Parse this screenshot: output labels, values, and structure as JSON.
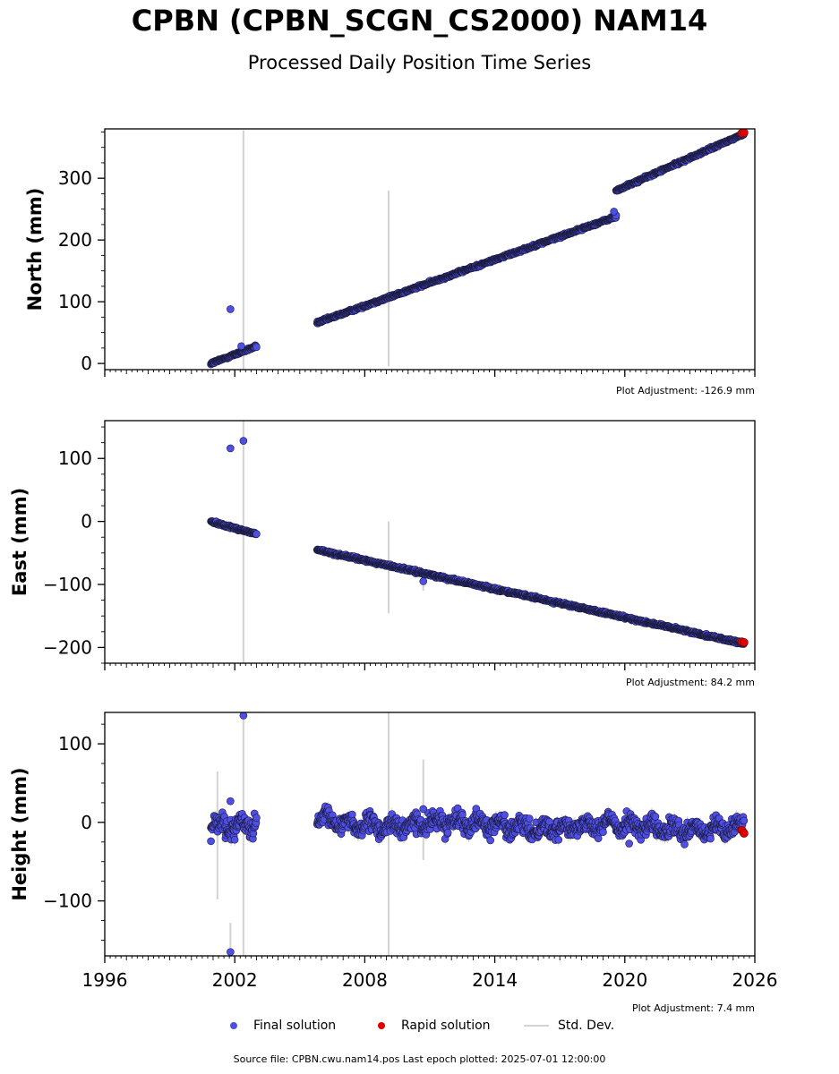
{
  "title": "CPBN (CPBN_SCGN_CS2000) NAM14",
  "subtitle": "Processed Daily Position Time Series",
  "footer": "Source file: CPBN.cwu.nam14.pos  Last epoch plotted: 2025-07-01 12:00:00",
  "legend": {
    "final": "Final solution",
    "rapid": "Rapid solution",
    "std": "Std. Dev."
  },
  "colors": {
    "final": "#4f4fe6",
    "final_edge": "#1a1a3a",
    "rapid": "#e00000",
    "std": "#d3d3d3"
  },
  "chart_data": [
    {
      "type": "scatter",
      "ylabel": "North (mm)",
      "xlim": [
        1996,
        2026
      ],
      "ylim": [
        -10,
        380
      ],
      "yticks": [
        0,
        100,
        200,
        300
      ],
      "ytick_labels": [
        "0",
        "100",
        "200",
        "300"
      ],
      "show_xtick_labels": false,
      "adjustment": "Plot Adjustment: -126.9 mm",
      "segments": [
        {
          "x0": 2000.9,
          "y0": 0,
          "x1": 2003.0,
          "y1": 28,
          "noise": 1.5
        },
        {
          "x0": 2005.8,
          "y0": 66,
          "x1": 2019.6,
          "y1": 238,
          "noise": 1.5
        },
        {
          "x0": 2019.6,
          "y0": 280,
          "x1": 2025.5,
          "y1": 372,
          "noise": 1.5
        }
      ],
      "outliers": [
        [
          2001.8,
          88
        ],
        [
          2002.3,
          28
        ],
        [
          2019.5,
          246
        ]
      ],
      "stdbars": [
        [
          2002.4,
          -10,
          378
        ],
        [
          2009.1,
          -5,
          280
        ]
      ],
      "rapid": [
        [
          2025.4,
          373
        ],
        [
          2025.5,
          374
        ]
      ]
    },
    {
      "type": "scatter",
      "ylabel": "East (mm)",
      "xlim": [
        1996,
        2026
      ],
      "ylim": [
        -225,
        160
      ],
      "yticks": [
        -200,
        -100,
        0,
        100
      ],
      "ytick_labels": [
        "−200",
        "−100",
        "0",
        "100"
      ],
      "show_xtick_labels": false,
      "adjustment": "Plot Adjustment: 84.2 mm",
      "segments": [
        {
          "x0": 2000.9,
          "y0": 0,
          "x1": 2003.0,
          "y1": -20,
          "noise": 1.5
        },
        {
          "x0": 2005.8,
          "y0": -45,
          "x1": 2025.5,
          "y1": -194,
          "noise": 1.5
        }
      ],
      "outliers": [
        [
          2001.8,
          116
        ],
        [
          2002.4,
          128
        ],
        [
          2010.7,
          -95
        ]
      ],
      "stdbars": [
        [
          2002.4,
          -225,
          160
        ],
        [
          2009.1,
          -146,
          0
        ],
        [
          2010.7,
          -110,
          -80
        ]
      ],
      "rapid": [
        [
          2025.4,
          -191
        ],
        [
          2025.5,
          -192
        ]
      ]
    },
    {
      "type": "scatter",
      "ylabel": "Height (mm)",
      "xlim": [
        1996,
        2026
      ],
      "ylim": [
        -170,
        140
      ],
      "yticks": [
        -100,
        0,
        100
      ],
      "ytick_labels": [
        "−100",
        "0",
        "100"
      ],
      "show_xtick_labels": true,
      "xticks": [
        1996,
        2002,
        2008,
        2014,
        2020,
        2026
      ],
      "xtick_labels": [
        "1996",
        "2002",
        "2008",
        "2014",
        "2020",
        "2026"
      ],
      "adjustment": "Plot Adjustment: 7.4 mm",
      "segments": [
        {
          "x0": 2000.9,
          "y0": 0,
          "x1": 2003.0,
          "y1": 0,
          "noise": 9
        },
        {
          "x0": 2005.8,
          "y0": 0,
          "x1": 2025.5,
          "y1": -8,
          "noise": 8
        }
      ],
      "outliers": [
        [
          2002.4,
          136
        ],
        [
          2001.8,
          -165
        ],
        [
          2001.8,
          27
        ],
        [
          2000.9,
          -24
        ],
        [
          2010.7,
          17
        ],
        [
          2020.2,
          -27
        ]
      ],
      "stdbars": [
        [
          2002.4,
          -170,
          140
        ],
        [
          2009.1,
          -170,
          140
        ],
        [
          2001.2,
          -98,
          65
        ],
        [
          2001.8,
          -160,
          -128
        ],
        [
          2010.7,
          -48,
          80
        ]
      ],
      "rapid": [
        [
          2025.4,
          -10
        ],
        [
          2025.5,
          -14
        ]
      ]
    }
  ]
}
